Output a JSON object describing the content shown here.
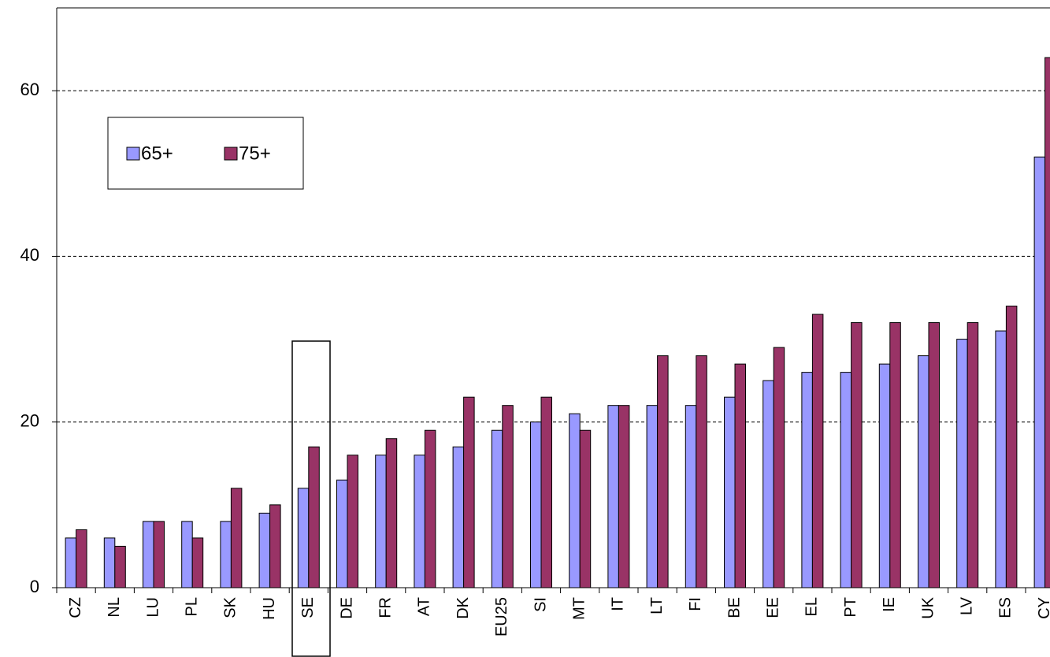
{
  "chart_data": {
    "type": "bar",
    "categories": [
      "CZ",
      "NL",
      "LU",
      "PL",
      "SK",
      "HU",
      "SE",
      "DE",
      "FR",
      "AT",
      "DK",
      "EU25",
      "SI",
      "MT",
      "IT",
      "LT",
      "FI",
      "BE",
      "EE",
      "EL",
      "PT",
      "IE",
      "UK",
      "LV",
      "ES",
      "CY"
    ],
    "series": [
      {
        "name": "65+",
        "color": "#9999ff",
        "values": [
          6,
          6,
          8,
          8,
          8,
          9,
          12,
          13,
          16,
          16,
          17,
          19,
          20,
          21,
          22,
          22,
          22,
          23,
          25,
          26,
          26,
          27,
          28,
          30,
          31,
          52
        ]
      },
      {
        "name": "75+",
        "color": "#993366",
        "values": [
          7,
          5,
          8,
          6,
          12,
          10,
          17,
          16,
          18,
          19,
          23,
          22,
          23,
          19,
          22,
          28,
          28,
          27,
          29,
          33,
          32,
          32,
          32,
          32,
          34,
          64
        ]
      }
    ],
    "ylim": [
      0,
      70
    ],
    "yticks": [
      0,
      20,
      40,
      60
    ],
    "grid": true,
    "legend": "upper left"
  }
}
